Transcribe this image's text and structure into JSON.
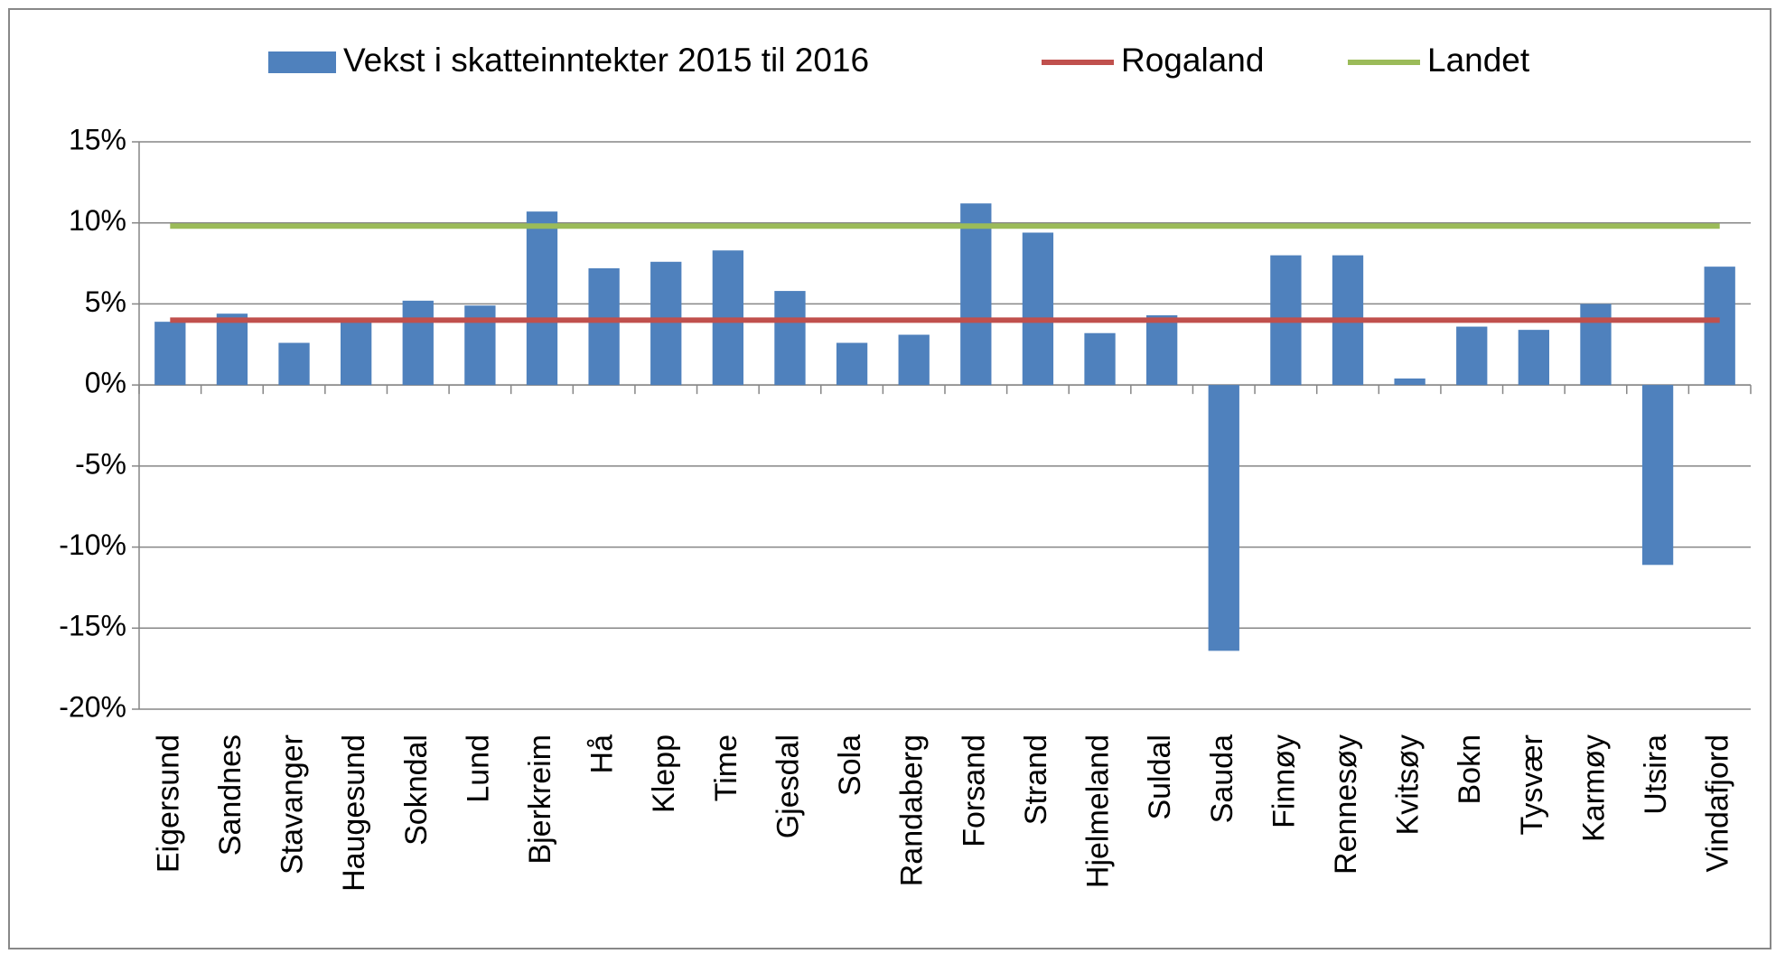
{
  "chart_data": {
    "type": "bar",
    "categories": [
      "Eigersund",
      "Sandnes",
      "Stavanger",
      "Haugesund",
      "Sokndal",
      "Lund",
      "Bjerkreim",
      "Hå",
      "Klepp",
      "Time",
      "Gjesdal",
      "Sola",
      "Randaberg",
      "Forsand",
      "Strand",
      "Hjelmeland",
      "Suldal",
      "Sauda",
      "Finnøy",
      "Rennesøy",
      "Kvitsøy",
      "Bokn",
      "Tysvær",
      "Karmøy",
      "Utsira",
      "Vindafjord"
    ],
    "series": [
      {
        "name": "Vekst i skatteinntekter 2015 til 2016",
        "type": "bar",
        "color": "#4f81bd",
        "values": [
          3.9,
          4.4,
          2.6,
          4.0,
          5.2,
          4.9,
          10.7,
          7.2,
          7.6,
          8.3,
          5.8,
          2.6,
          3.1,
          11.2,
          9.4,
          3.2,
          4.3,
          -16.4,
          8.0,
          8.0,
          0.4,
          3.6,
          3.4,
          5.0,
          -11.1,
          7.3
        ]
      },
      {
        "name": "Rogaland",
        "type": "line",
        "color": "#c0504d",
        "values": [
          4.0,
          4.0,
          4.0,
          4.0,
          4.0,
          4.0,
          4.0,
          4.0,
          4.0,
          4.0,
          4.0,
          4.0,
          4.0,
          4.0,
          4.0,
          4.0,
          4.0,
          4.0,
          4.0,
          4.0,
          4.0,
          4.0,
          4.0,
          4.0,
          4.0,
          4.0
        ]
      },
      {
        "name": "Landet",
        "type": "line",
        "color": "#9bbb59",
        "values": [
          9.8,
          9.8,
          9.8,
          9.8,
          9.8,
          9.8,
          9.8,
          9.8,
          9.8,
          9.8,
          9.8,
          9.8,
          9.8,
          9.8,
          9.8,
          9.8,
          9.8,
          9.8,
          9.8,
          9.8,
          9.8,
          9.8,
          9.8,
          9.8,
          9.8,
          9.8
        ]
      }
    ],
    "ylim": [
      -20,
      15
    ],
    "yticks": [
      {
        "value": -20,
        "label": "-20%"
      },
      {
        "value": -15,
        "label": "-15%"
      },
      {
        "value": -10,
        "label": "-10%"
      },
      {
        "value": -5,
        "label": "-5%"
      },
      {
        "value": 0,
        "label": "0%"
      },
      {
        "value": 5,
        "label": "5%"
      },
      {
        "value": 10,
        "label": "10%"
      },
      {
        "value": 15,
        "label": "15%"
      }
    ],
    "grid": true,
    "legend": "top"
  }
}
